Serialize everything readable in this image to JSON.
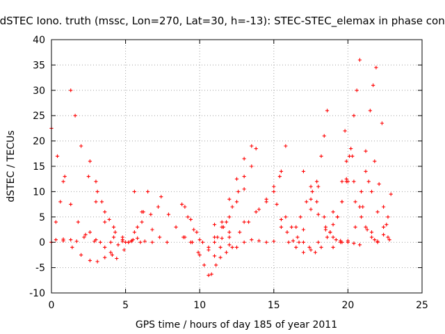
{
  "chart_data": {
    "type": "scatter",
    "title": "dSTEC Iono. truth (mssc, Lon=270, Lat=30, h=-13): STEC-STEC_elemax in phase cont.",
    "xlabel": "GPS time / hours of day 185 of year 2011",
    "ylabel": "dSTEC  / TECUs",
    "xlim": [
      0,
      25
    ],
    "ylim": [
      -10,
      40
    ],
    "xticks": [
      0,
      5,
      10,
      15,
      20,
      25
    ],
    "yticks": [
      -10,
      -5,
      0,
      5,
      10,
      15,
      20,
      25,
      30,
      35,
      40
    ],
    "grid": true,
    "marker": "+",
    "color": "#ff0000",
    "arcs": [
      [
        [
          0.0,
          22.5
        ],
        [
          0.4,
          17.0
        ],
        [
          0.8,
          12.0
        ],
        [
          1.3,
          7.5
        ],
        [
          1.8,
          4.0
        ],
        [
          2.3,
          1.5
        ],
        [
          2.9,
          0.2
        ],
        [
          3.3,
          0.0
        ]
      ],
      [
        [
          0.0,
          0.0
        ],
        [
          0.3,
          0.5
        ],
        [
          0.8,
          0.3
        ],
        [
          1.3,
          0.5
        ],
        [
          1.7,
          0.2
        ],
        [
          2.2,
          1.0
        ],
        [
          2.6,
          2.0
        ]
      ],
      [
        [
          0.0,
          0.0
        ],
        [
          0.3,
          4.0
        ],
        [
          0.6,
          8.0
        ],
        [
          0.9,
          13.0
        ]
      ],
      [
        [
          1.3,
          30.0
        ],
        [
          1.6,
          25.0
        ],
        [
          2.0,
          19.0
        ],
        [
          2.5,
          13.0
        ],
        [
          3.0,
          8.0
        ],
        [
          3.6,
          4.0
        ],
        [
          4.2,
          1.0
        ],
        [
          4.8,
          0.2
        ],
        [
          5.2,
          0.0
        ]
      ],
      [
        [
          0.8,
          0.6
        ],
        [
          1.4,
          -1.0
        ],
        [
          2.0,
          -2.5
        ],
        [
          2.6,
          -3.6
        ],
        [
          3.1,
          -3.8
        ],
        [
          3.6,
          -3.0
        ],
        [
          4.0,
          -2.0
        ]
      ],
      [
        [
          2.6,
          16.0
        ],
        [
          3.1,
          10.0
        ],
        [
          3.6,
          6.0
        ],
        [
          4.2,
          3.0
        ],
        [
          4.8,
          1.0
        ],
        [
          5.4,
          0.2
        ],
        [
          6.0,
          0.0
        ]
      ],
      [
        [
          3.0,
          12.0
        ],
        [
          3.4,
          8.0
        ],
        [
          3.9,
          4.5
        ],
        [
          4.3,
          2.0
        ],
        [
          4.8,
          0.5
        ]
      ],
      [
        [
          3.0,
          0.5
        ],
        [
          3.6,
          -1.0
        ],
        [
          4.1,
          -2.5
        ],
        [
          4.4,
          -3.2
        ],
        [
          4.9,
          -1.5
        ]
      ],
      [
        [
          4.0,
          0.0
        ],
        [
          4.5,
          -0.5
        ],
        [
          5.0,
          0.0
        ],
        [
          5.4,
          0.3
        ],
        [
          5.8,
          0.8
        ],
        [
          6.3,
          0.2
        ],
        [
          6.8,
          0.0
        ]
      ],
      [
        [
          5.5,
          0.5
        ],
        [
          5.8,
          3.0
        ],
        [
          6.1,
          6.0
        ],
        [
          6.5,
          10.0
        ]
      ],
      [
        [
          5.2,
          0.0
        ],
        [
          5.6,
          2.0
        ],
        [
          6.1,
          4.0
        ],
        [
          6.7,
          5.5
        ],
        [
          7.2,
          7.0
        ]
      ],
      [
        [
          5.6,
          10.0
        ],
        [
          6.2,
          6.0
        ],
        [
          6.8,
          2.5
        ],
        [
          7.3,
          1.0
        ],
        [
          7.8,
          0.0
        ]
      ],
      [
        [
          7.4,
          9.0
        ],
        [
          7.9,
          5.5
        ],
        [
          8.4,
          3.0
        ],
        [
          8.9,
          1.0
        ],
        [
          9.4,
          0.0
        ]
      ],
      [
        [
          8.8,
          7.5
        ],
        [
          9.2,
          5.0
        ],
        [
          9.6,
          2.5
        ],
        [
          10.0,
          0.5
        ]
      ],
      [
        [
          9.0,
          7.0
        ],
        [
          9.4,
          4.5
        ],
        [
          9.8,
          2.0
        ],
        [
          10.2,
          0.0
        ],
        [
          10.6,
          -1.5
        ],
        [
          11.0,
          -2.7
        ],
        [
          11.4,
          -3.0
        ],
        [
          11.8,
          -2.0
        ],
        [
          12.2,
          -1.0
        ]
      ],
      [
        [
          9.0,
          1.0
        ],
        [
          9.5,
          0.0
        ],
        [
          9.9,
          -2.0
        ],
        [
          10.3,
          -4.5
        ],
        [
          10.6,
          -6.5
        ],
        [
          10.8,
          -6.3
        ],
        [
          11.1,
          -4.5
        ],
        [
          11.4,
          -1.0
        ],
        [
          11.6,
          3.0
        ]
      ],
      [
        [
          10.0,
          -2.5
        ],
        [
          10.6,
          -1.0
        ],
        [
          11.2,
          1.0
        ],
        [
          11.8,
          4.0
        ],
        [
          12.2,
          7.0
        ],
        [
          12.6,
          10.0
        ],
        [
          13.0,
          13.0
        ]
      ],
      [
        [
          11.0,
          0.0
        ],
        [
          11.5,
          3.0
        ],
        [
          12.0,
          5.0
        ],
        [
          12.5,
          8.0
        ],
        [
          13.0,
          10.5
        ],
        [
          13.5,
          15.0
        ],
        [
          13.8,
          18.5
        ]
      ],
      [
        [
          11.0,
          1.0
        ],
        [
          11.5,
          4.0
        ],
        [
          12.0,
          8.5
        ],
        [
          12.5,
          12.5
        ],
        [
          13.0,
          16.5
        ],
        [
          13.5,
          19.0
        ]
      ],
      [
        [
          11.5,
          0.8
        ],
        [
          12.0,
          -0.5
        ],
        [
          12.5,
          -1.0
        ],
        [
          13.0,
          0.0
        ],
        [
          13.5,
          0.5
        ],
        [
          14.0,
          0.3
        ],
        [
          14.5,
          0.0
        ],
        [
          15.0,
          0.2
        ]
      ],
      [
        [
          11.0,
          3.5
        ],
        [
          12.0,
          2.0
        ],
        [
          13.0,
          4.0
        ],
        [
          13.8,
          6.0
        ],
        [
          14.5,
          8.0
        ],
        [
          15.0,
          10.0
        ],
        [
          15.4,
          13.0
        ],
        [
          15.8,
          19.0
        ]
      ],
      [
        [
          12.0,
          1.0
        ],
        [
          12.7,
          2.0
        ],
        [
          13.3,
          4.0
        ],
        [
          14.0,
          6.5
        ],
        [
          14.5,
          8.5
        ],
        [
          15.0,
          11.0
        ],
        [
          15.5,
          14.0
        ]
      ],
      [
        [
          15.2,
          7.5
        ],
        [
          15.5,
          4.5
        ],
        [
          15.9,
          2.0
        ],
        [
          16.3,
          0.3
        ],
        [
          16.7,
          0.0
        ]
      ],
      [
        [
          15.8,
          5.0
        ],
        [
          16.2,
          3.0
        ],
        [
          16.6,
          1.0
        ],
        [
          17.0,
          0.0
        ],
        [
          17.4,
          -1.0
        ],
        [
          17.8,
          -2.0
        ],
        [
          18.2,
          -1.0
        ],
        [
          18.6,
          1.0
        ],
        [
          19.0,
          3.5
        ]
      ],
      [
        [
          15.5,
          3.0
        ],
        [
          16.0,
          0.0
        ],
        [
          16.5,
          -1.0
        ],
        [
          17.0,
          -2.0
        ],
        [
          17.5,
          -1.5
        ],
        [
          18.0,
          0.0
        ],
        [
          18.5,
          2.5
        ],
        [
          19.0,
          6.0
        ],
        [
          19.6,
          12.0
        ],
        [
          19.9,
          16.0
        ]
      ],
      [
        [
          17.0,
          2.5
        ],
        [
          17.5,
          6.5
        ],
        [
          17.9,
          12.0
        ],
        [
          18.2,
          17.0
        ],
        [
          18.4,
          21.0
        ],
        [
          18.6,
          26.0
        ]
      ],
      [
        [
          16.5,
          3.0
        ],
        [
          16.8,
          5.0
        ],
        [
          17.2,
          8.0
        ],
        [
          17.6,
          10.0
        ],
        [
          18.0,
          11.0
        ]
      ],
      [
        [
          17.0,
          14.0
        ],
        [
          17.5,
          11.0
        ],
        [
          17.9,
          8.0
        ],
        [
          18.4,
          5.0
        ],
        [
          18.8,
          2.0
        ],
        [
          19.2,
          0.5
        ],
        [
          19.6,
          0.0
        ],
        [
          20.0,
          0.0
        ]
      ],
      [
        [
          17.5,
          8.5
        ],
        [
          18.0,
          5.5
        ],
        [
          18.5,
          3.0
        ],
        [
          19.0,
          1.0
        ],
        [
          19.5,
          0.3
        ]
      ],
      [
        [
          19.0,
          -1.0
        ],
        [
          19.5,
          0.0
        ],
        [
          20.0,
          0.3
        ],
        [
          20.4,
          -0.2
        ],
        [
          20.8,
          -0.5
        ]
      ],
      [
        [
          19.3,
          5.0
        ],
        [
          19.6,
          8.0
        ],
        [
          19.9,
          12.5
        ],
        [
          20.2,
          18.5
        ],
        [
          20.4,
          25.0
        ],
        [
          20.6,
          30.0
        ],
        [
          20.8,
          36.0
        ]
      ],
      [
        [
          18.8,
          2.0
        ],
        [
          19.3,
          5.0
        ],
        [
          19.6,
          8.0
        ],
        [
          19.9,
          12.0
        ],
        [
          20.3,
          17.0
        ]
      ],
      [
        [
          19.8,
          22.0
        ],
        [
          20.1,
          17.0
        ],
        [
          20.4,
          12.0
        ],
        [
          20.8,
          7.0
        ],
        [
          21.2,
          3.0
        ],
        [
          21.6,
          1.0
        ],
        [
          22.0,
          0.2
        ]
      ],
      [
        [
          20.0,
          12.0
        ],
        [
          20.5,
          8.0
        ],
        [
          20.9,
          5.0
        ],
        [
          21.3,
          2.5
        ],
        [
          21.8,
          0.5
        ]
      ],
      [
        [
          20.5,
          3.0
        ],
        [
          20.9,
          10.0
        ],
        [
          21.2,
          18.0
        ],
        [
          21.5,
          26.0
        ],
        [
          21.7,
          31.0
        ],
        [
          21.9,
          34.5
        ]
      ],
      [
        [
          21.2,
          14.0
        ],
        [
          21.6,
          10.0
        ],
        [
          22.0,
          6.0
        ],
        [
          22.4,
          3.0
        ],
        [
          22.7,
          1.0
        ]
      ],
      [
        [
          21.0,
          7.0
        ],
        [
          21.4,
          12.0
        ],
        [
          21.8,
          16.0
        ],
        [
          22.3,
          23.5
        ]
      ],
      [
        [
          21.6,
          2.0
        ],
        [
          22.0,
          0.0
        ],
        [
          22.4,
          1.5
        ],
        [
          22.7,
          5.0
        ],
        [
          22.9,
          9.5
        ]
      ],
      [
        [
          22.1,
          11.5
        ],
        [
          22.4,
          7.0
        ],
        [
          22.6,
          3.5
        ],
        [
          22.8,
          0.5
        ]
      ]
    ]
  }
}
